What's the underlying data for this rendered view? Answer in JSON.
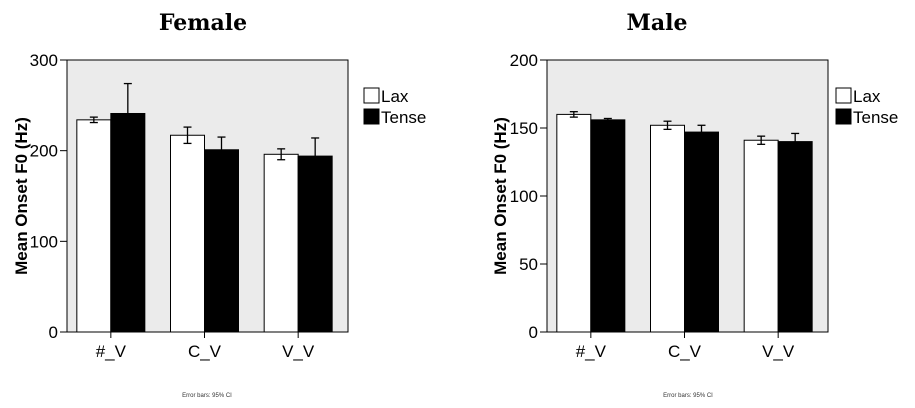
{
  "figure": {
    "footnote": "Error bars: 95% CI",
    "colors": {
      "plot_background": "#ebebeb",
      "lax_fill": "#ffffff",
      "tense_fill": "#000000",
      "stroke": "#000000"
    }
  },
  "chart_data": [
    {
      "type": "bar",
      "title": "Female",
      "xlabel": "",
      "ylabel": "Mean Onset F0 (Hz)",
      "ylim": [
        0,
        300
      ],
      "yticks": [
        0,
        100,
        200,
        300
      ],
      "categories": [
        "#_V",
        "C_V",
        "V_V"
      ],
      "series": [
        {
          "name": "Lax",
          "values": [
            234,
            217,
            196
          ],
          "ci_low": [
            231,
            208,
            190
          ],
          "ci_high": [
            237,
            226,
            202
          ]
        },
        {
          "name": "Tense",
          "values": [
            241,
            201,
            194
          ],
          "ci_low": [
            210,
            187,
            173
          ],
          "ci_high": [
            274,
            215,
            214
          ]
        }
      ],
      "legend_position": "right",
      "grid": false,
      "footnote": "Error bars: 95% CI"
    },
    {
      "type": "bar",
      "title": "Male",
      "xlabel": "",
      "ylabel": "Mean Onset F0 (Hz)",
      "ylim": [
        0,
        200
      ],
      "yticks": [
        0,
        50,
        100,
        150,
        200
      ],
      "categories": [
        "#_V",
        "C_V",
        "V_V"
      ],
      "series": [
        {
          "name": "Lax",
          "values": [
            160,
            152,
            141
          ],
          "ci_low": [
            158,
            149,
            138
          ],
          "ci_high": [
            162,
            155,
            144
          ]
        },
        {
          "name": "Tense",
          "values": [
            156,
            147,
            140
          ],
          "ci_low": [
            155,
            142,
            134
          ],
          "ci_high": [
            157,
            152,
            146
          ]
        }
      ],
      "legend_position": "right",
      "grid": false,
      "footnote": "Error bars: 95% CI"
    }
  ]
}
